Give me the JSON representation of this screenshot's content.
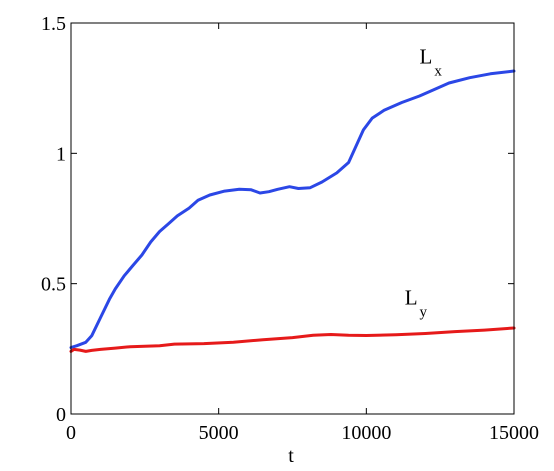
{
  "chart_data": {
    "type": "line",
    "title": "",
    "xlabel": "t",
    "ylabel": "",
    "xlim": [
      0,
      15000
    ],
    "ylim": [
      0,
      1.5
    ],
    "grid": false,
    "x_ticks": [
      0,
      5000,
      10000,
      15000
    ],
    "x_tick_labels": [
      "0",
      "5000",
      "10000",
      "15000"
    ],
    "y_ticks": [
      0,
      0.5,
      1,
      1.5
    ],
    "y_tick_labels": [
      "0",
      "0.5",
      "1",
      "1.5"
    ],
    "series": [
      {
        "name": "Lx",
        "label_main": "L",
        "label_sub": "x",
        "label_at": [
          11800,
          1.345
        ],
        "color": "#2b47e6",
        "points": [
          [
            0,
            0.255
          ],
          [
            200,
            0.262
          ],
          [
            500,
            0.275
          ],
          [
            700,
            0.3
          ],
          [
            1000,
            0.37
          ],
          [
            1300,
            0.44
          ],
          [
            1500,
            0.48
          ],
          [
            1800,
            0.53
          ],
          [
            2100,
            0.57
          ],
          [
            2400,
            0.61
          ],
          [
            2700,
            0.66
          ],
          [
            3000,
            0.7
          ],
          [
            3300,
            0.73
          ],
          [
            3600,
            0.76
          ],
          [
            4000,
            0.79
          ],
          [
            4300,
            0.82
          ],
          [
            4700,
            0.84
          ],
          [
            5200,
            0.855
          ],
          [
            5700,
            0.862
          ],
          [
            6100,
            0.86
          ],
          [
            6400,
            0.848
          ],
          [
            6700,
            0.853
          ],
          [
            7000,
            0.862
          ],
          [
            7400,
            0.872
          ],
          [
            7700,
            0.865
          ],
          [
            8100,
            0.868
          ],
          [
            8500,
            0.89
          ],
          [
            9000,
            0.925
          ],
          [
            9400,
            0.965
          ],
          [
            9700,
            1.04
          ],
          [
            9900,
            1.09
          ],
          [
            10200,
            1.135
          ],
          [
            10600,
            1.165
          ],
          [
            11200,
            1.195
          ],
          [
            11800,
            1.22
          ],
          [
            12300,
            1.245
          ],
          [
            12800,
            1.27
          ],
          [
            13500,
            1.29
          ],
          [
            14200,
            1.305
          ],
          [
            15000,
            1.316
          ]
        ]
      },
      {
        "name": "Ly",
        "label_main": "L",
        "label_sub": "y",
        "label_at": [
          11300,
          0.42
        ],
        "color": "#e61a1a",
        "points": [
          [
            0,
            0.24
          ],
          [
            100,
            0.248
          ],
          [
            300,
            0.245
          ],
          [
            500,
            0.24
          ],
          [
            700,
            0.244
          ],
          [
            1000,
            0.248
          ],
          [
            1500,
            0.253
          ],
          [
            2000,
            0.258
          ],
          [
            2500,
            0.26
          ],
          [
            3000,
            0.262
          ],
          [
            3500,
            0.268
          ],
          [
            4500,
            0.27
          ],
          [
            5500,
            0.275
          ],
          [
            6500,
            0.285
          ],
          [
            7500,
            0.293
          ],
          [
            8200,
            0.302
          ],
          [
            8800,
            0.305
          ],
          [
            9400,
            0.302
          ],
          [
            10000,
            0.301
          ],
          [
            11000,
            0.304
          ],
          [
            12000,
            0.309
          ],
          [
            13000,
            0.316
          ],
          [
            14000,
            0.322
          ],
          [
            15000,
            0.33
          ]
        ]
      }
    ]
  }
}
